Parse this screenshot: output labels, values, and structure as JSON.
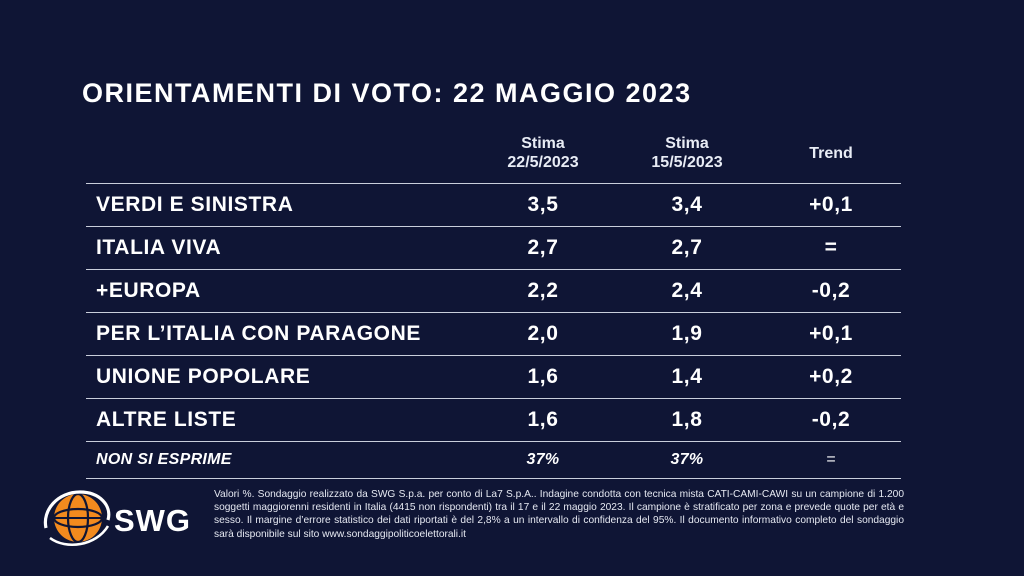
{
  "title": "ORIENTAMENTI DI VOTO: 22 MAGGIO 2023",
  "chart_data": {
    "type": "table",
    "title": "ORIENTAMENTI DI VOTO: 22 MAGGIO 2023",
    "columns": [
      {
        "line1": "Stima",
        "line2": "22/5/2023"
      },
      {
        "line1": "Stima",
        "line2": "15/5/2023"
      },
      {
        "line1": "Trend",
        "line2": ""
      }
    ],
    "rows": [
      {
        "name": "VERDI E SINISTRA",
        "v1": "3,5",
        "v2": "3,4",
        "trend": "+0,1"
      },
      {
        "name": "ITALIA VIVA",
        "v1": "2,7",
        "v2": "2,7",
        "trend": "="
      },
      {
        "name": "+EUROPA",
        "v1": "2,2",
        "v2": "2,4",
        "trend": "-0,2"
      },
      {
        "name": "PER L’ITALIA CON PARAGONE",
        "v1": "2,0",
        "v2": "1,9",
        "trend": "+0,1"
      },
      {
        "name": "UNIONE POPOLARE",
        "v1": "1,6",
        "v2": "1,4",
        "trend": "+0,2"
      },
      {
        "name": "ALTRE LISTE",
        "v1": "1,6",
        "v2": "1,8",
        "trend": "-0,2"
      },
      {
        "name": "NON SI ESPRIME",
        "v1": "37%",
        "v2": "37%",
        "trend": "="
      }
    ]
  },
  "logo": {
    "text": "SWG",
    "icon": "globe-logo-icon",
    "colors": {
      "orange": "#f28a1e",
      "dark": "#0f1535"
    }
  },
  "footnote": "Valori %. Sondaggio realizzato da SWG S.p.a. per conto di La7 S.p.A.. Indagine condotta con tecnica mista CATI-CAMI-CAWI su un campione di 1.200 soggetti maggiorenni residenti in Italia (4415 non rispondenti) tra il 17 e il 22 maggio 2023. Il campione è stratificato per zona e prevede quote per età e sesso. Il margine d’errore statistico dei dati riportati è del 2,8% a un intervallo di confidenza del 95%. Il documento informativo completo del sondaggio sarà disponibile sul sito www.sondaggipoliticoelettorali.it"
}
